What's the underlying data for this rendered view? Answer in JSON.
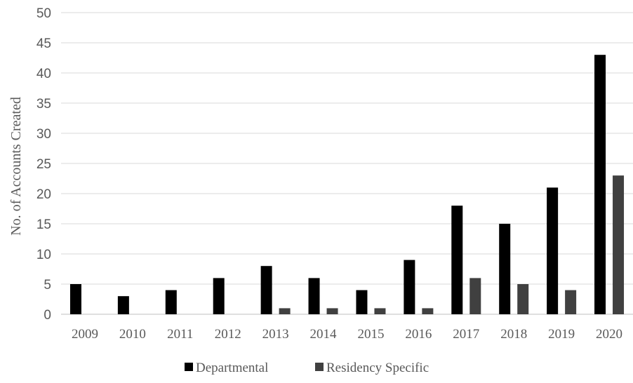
{
  "chart_data": {
    "type": "bar",
    "title": "",
    "xlabel": "",
    "ylabel": "No. of Accounts Created",
    "ylim": [
      0,
      50
    ],
    "yticks": [
      0,
      5,
      10,
      15,
      20,
      25,
      30,
      35,
      40,
      45,
      50
    ],
    "grid": true,
    "legend_position": "bottom",
    "categories": [
      "2009",
      "2010",
      "2011",
      "2012",
      "2013",
      "2014",
      "2015",
      "2016",
      "2017",
      "2018",
      "2019",
      "2020"
    ],
    "series": [
      {
        "name": "Departmental",
        "color": "#000000",
        "values": [
          5,
          3,
          4,
          6,
          8,
          6,
          4,
          9,
          18,
          15,
          21,
          43
        ]
      },
      {
        "name": "Residency Specific",
        "color": "#404040",
        "values": [
          0,
          0,
          0,
          0,
          1,
          1,
          1,
          1,
          6,
          5,
          4,
          23
        ]
      }
    ]
  }
}
